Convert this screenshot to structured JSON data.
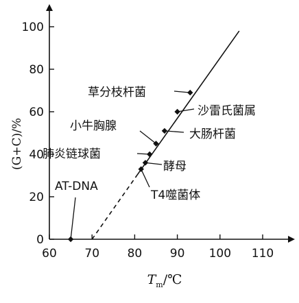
{
  "chart_data": {
    "type": "line",
    "xlabel": "Tm/℃",
    "xlabel_main": "T",
    "xlabel_sub": "m",
    "xlabel_unit": "/℃",
    "ylabel": "(G+C)/%",
    "xlim": [
      60,
      115
    ],
    "ylim": [
      0,
      105
    ],
    "x_ticks": [
      60,
      70,
      80,
      90,
      100,
      110
    ],
    "y_ticks": [
      0,
      20,
      40,
      60,
      80,
      100
    ],
    "grid": false,
    "line": {
      "solid_from": {
        "x": 80.5,
        "y": 30
      },
      "solid_to": {
        "x": 104.5,
        "y": 98
      },
      "dashed_from": {
        "x": 70,
        "y": 0
      },
      "dashed_to": {
        "x": 80.5,
        "y": 30
      }
    },
    "points": [
      {
        "label": "AT-DNA",
        "x": 65,
        "y": 0
      },
      {
        "label": "T4噬菌体",
        "x": 81.5,
        "y": 33
      },
      {
        "label": "酵母",
        "x": 82.5,
        "y": 36
      },
      {
        "label": "肺炎链球菌",
        "x": 83.5,
        "y": 40
      },
      {
        "label": "小牛胸腺",
        "x": 85,
        "y": 45
      },
      {
        "label": "大肠杆菌",
        "x": 87,
        "y": 51
      },
      {
        "label": "沙雷氏菌属",
        "x": 90,
        "y": 60
      },
      {
        "label": "草分枝杆菌",
        "x": 93,
        "y": 69
      }
    ]
  }
}
